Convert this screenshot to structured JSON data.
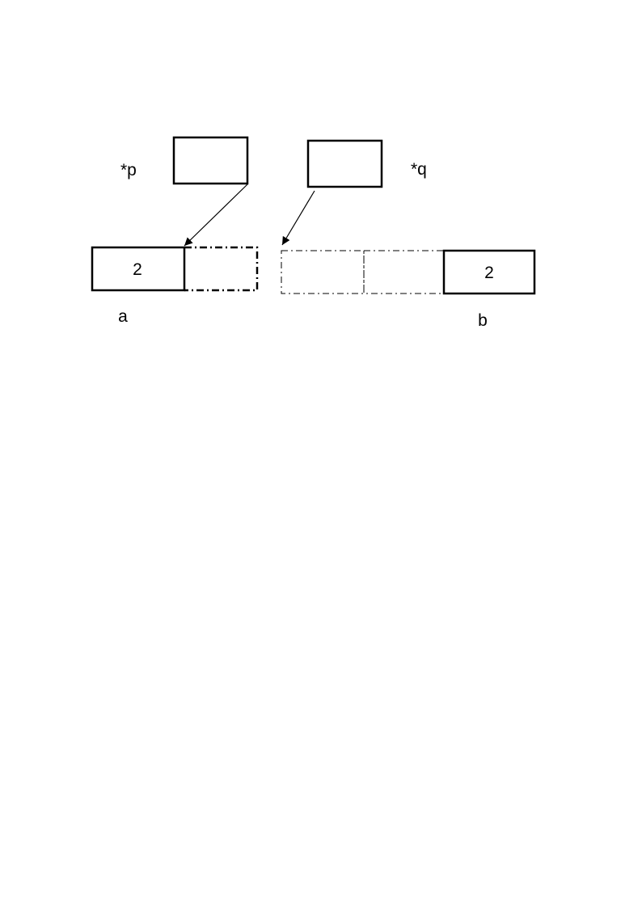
{
  "pointer_p": {
    "label": "*p"
  },
  "pointer_q": {
    "label": "*q"
  },
  "array_a": {
    "name": "a",
    "first_value": "2"
  },
  "array_b": {
    "name": "b",
    "last_value": "2"
  },
  "colors": {
    "stroke": "#000000",
    "background": "#ffffff"
  }
}
